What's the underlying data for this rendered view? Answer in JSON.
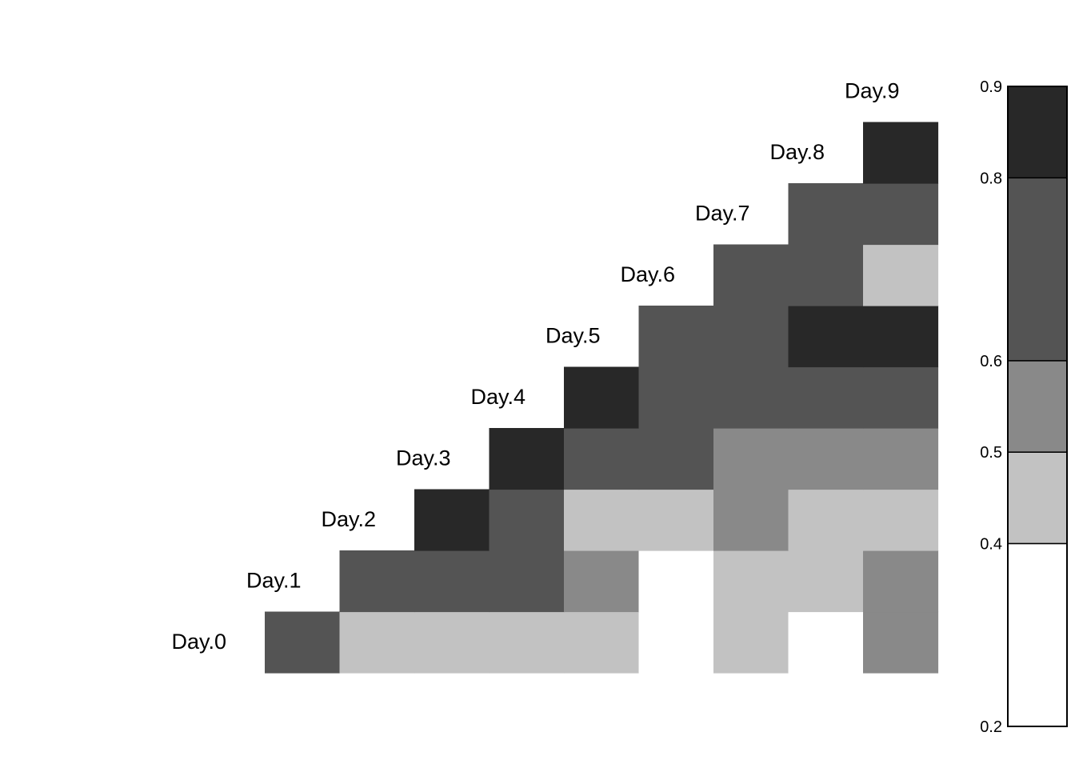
{
  "chart_data": {
    "type": "heatmap",
    "layout": "lower-triangle",
    "rows": [
      "Day.0",
      "Day.1",
      "Day.2",
      "Day.3",
      "Day.4",
      "Day.5",
      "Day.6",
      "Day.7",
      "Day.8",
      "Day.9"
    ],
    "columns": [
      "Day.0",
      "Day.1",
      "Day.2",
      "Day.3",
      "Day.4",
      "Day.5",
      "Day.6",
      "Day.7",
      "Day.8",
      "Day.9"
    ],
    "values": [
      [
        0.7,
        0.45,
        0.45,
        0.45,
        0.45,
        0.3,
        0.45,
        0.3,
        0.55
      ],
      [
        0.7,
        0.7,
        0.7,
        0.55,
        0.3,
        0.45,
        0.45,
        0.55
      ],
      [
        0.85,
        0.7,
        0.45,
        0.45,
        0.55,
        0.45,
        0.45
      ],
      [
        0.85,
        0.7,
        0.7,
        0.55,
        0.55,
        0.55
      ],
      [
        0.85,
        0.7,
        0.7,
        0.7,
        0.7
      ],
      [
        0.7,
        0.7,
        0.85,
        0.85
      ],
      [
        0.7,
        0.7,
        0.45
      ],
      [
        0.7,
        0.7
      ],
      [
        0.85
      ]
    ],
    "colorbar": {
      "breaks": [
        0.2,
        0.4,
        0.5,
        0.6,
        0.8,
        0.9
      ],
      "tick_labels": [
        "0.2",
        "0.4",
        "0.5",
        "0.6",
        "0.8",
        "0.9"
      ],
      "colors": [
        "#ffffff",
        "#c2c2c2",
        "#898989",
        "#545454",
        "#282828"
      ]
    },
    "grid": false,
    "legend_position": "right"
  }
}
